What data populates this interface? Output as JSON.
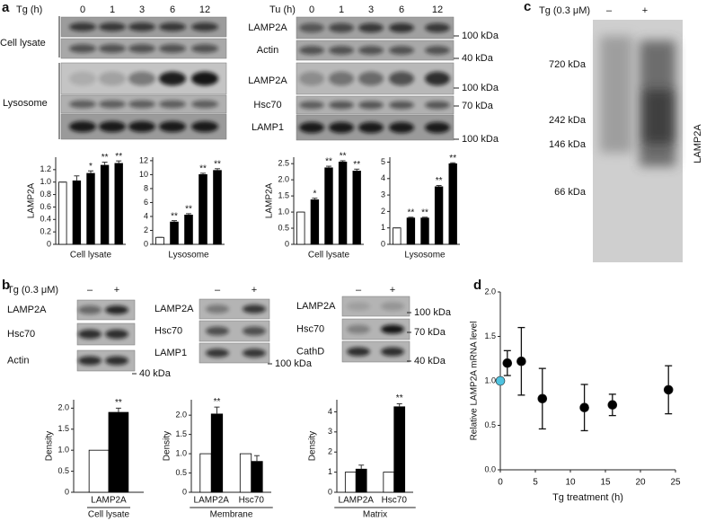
{
  "panels": {
    "a": {
      "label": "a",
      "left_blot": {
        "treatment": "Tg (h)",
        "times": [
          "0",
          "1",
          "3",
          "6",
          "12"
        ],
        "groups": [
          "Cell lysate",
          "Lysosome"
        ]
      },
      "right_blot": {
        "treatment": "Tu (h)",
        "times": [
          "0",
          "1",
          "3",
          "6",
          "12"
        ],
        "bands": [
          "LAMP2A",
          "Actin",
          "LAMP2A",
          "Hsc70",
          "LAMP1"
        ],
        "markers": [
          "100 kDa",
          "40 kDa",
          "100 kDa",
          "70 kDa",
          "100 kDa"
        ]
      }
    },
    "b": {
      "label": "b",
      "treatment": "Tg (0.3 μM)",
      "blots": [
        {
          "conditions": [
            "–",
            "+"
          ],
          "bands": [
            "LAMP2A",
            "Hsc70",
            "Actin"
          ],
          "markers": [
            "40 kDa"
          ]
        },
        {
          "conditions": [
            "–",
            "+"
          ],
          "bands": [
            "LAMP2A",
            "Hsc70",
            "LAMP1"
          ],
          "markers": [
            "100 kDa"
          ]
        },
        {
          "conditions": [
            "–",
            "+"
          ],
          "bands": [
            "LAMP2A",
            "Hsc70",
            "CathD"
          ],
          "markers": [
            "100 kDa",
            "70 kDa",
            "40 kDa"
          ]
        }
      ]
    },
    "c": {
      "label": "c",
      "treatment": "Tg (0.3 μM)",
      "conditions": [
        "–",
        "+"
      ],
      "markers": [
        "720 kDa",
        "242 kDa",
        "146 kDa",
        "66 kDa"
      ],
      "band": "LAMP2A"
    },
    "d": {
      "label": "d"
    }
  },
  "chart_data": [
    {
      "type": "bar",
      "y_label": "LAMP2A",
      "x_label": "Cell lysate",
      "values": [
        1.0,
        1.02,
        1.14,
        1.27,
        1.3
      ],
      "errors": [
        0,
        0.08,
        0.04,
        0.05,
        0.04
      ],
      "annotations": [
        null,
        null,
        "*",
        "**",
        "**"
      ],
      "colors": [
        "#ffffff",
        "#000000",
        "#000000",
        "#000000",
        "#000000"
      ],
      "ylim": [
        0,
        1.4
      ],
      "yticks": [
        0,
        0.2,
        0.4,
        0.6,
        0.8,
        {
          "value": 1,
          "label": "1.0"
        },
        1.2
      ]
    },
    {
      "type": "bar",
      "y_label": null,
      "x_label": "Lysosome",
      "values": [
        1.0,
        3.2,
        4.2,
        10.0,
        10.6
      ],
      "errors": [
        0,
        0.2,
        0.2,
        0.2,
        0.25
      ],
      "annotations": [
        null,
        "**",
        "**",
        "**",
        "**"
      ],
      "colors": [
        "#ffffff",
        "#000000",
        "#000000",
        "#000000",
        "#000000"
      ],
      "ylim": [
        0,
        12.5
      ],
      "yticks": [
        0,
        2,
        4,
        6,
        8,
        10,
        12
      ]
    },
    {
      "type": "bar",
      "y_label": "LAMP2A",
      "x_label": "Cell lysate",
      "values": [
        1.0,
        1.38,
        2.37,
        2.55,
        2.27
      ],
      "errors": [
        0,
        0.05,
        0.05,
        0.04,
        0.06
      ],
      "annotations": [
        null,
        "*",
        "**",
        "**",
        "**"
      ],
      "colors": [
        "#ffffff",
        "#000000",
        "#000000",
        "#000000",
        "#000000"
      ],
      "ylim": [
        0,
        2.7
      ],
      "yticks": [
        0,
        0.5,
        {
          "value": 1,
          "label": "1.0"
        },
        1.5,
        {
          "value": 2,
          "label": "2.0"
        },
        2.5
      ]
    },
    {
      "type": "bar",
      "y_label": null,
      "x_label": "Lysosome",
      "values": [
        1.0,
        1.6,
        1.6,
        3.5,
        4.9
      ],
      "errors": [
        0,
        0.05,
        0.05,
        0.08,
        0.06
      ],
      "annotations": [
        null,
        "**",
        "**",
        "**",
        "**"
      ],
      "colors": [
        "#ffffff",
        "#000000",
        "#000000",
        "#000000",
        "#000000"
      ],
      "ylim": [
        0,
        5.3
      ],
      "yticks": [
        0,
        1,
        2,
        3,
        4,
        5
      ]
    },
    {
      "type": "grouped_bar",
      "y_label": "Density",
      "group_label": "Cell lysate",
      "categories": [
        "LAMP2A"
      ],
      "series": [
        {
          "color": "#ffffff",
          "values": [
            1.0
          ]
        },
        {
          "color": "#000000",
          "values": [
            1.9
          ],
          "errors": [
            0.1
          ],
          "annotations": [
            "**"
          ]
        }
      ],
      "ylim": [
        0,
        2.2
      ],
      "yticks": [
        0,
        0.5,
        {
          "value": 1,
          "label": "1.0"
        },
        1.5,
        {
          "value": 2,
          "label": "2.0"
        }
      ]
    },
    {
      "type": "grouped_bar",
      "y_label": "Density",
      "group_label": "Membrane",
      "categories": [
        "LAMP2A",
        "Hsc70"
      ],
      "series": [
        {
          "color": "#ffffff",
          "values": [
            1.0,
            1.0
          ]
        },
        {
          "color": "#000000",
          "values": [
            2.03,
            0.8
          ],
          "errors": [
            0.18,
            0.15
          ],
          "annotations": [
            "**",
            null
          ]
        }
      ],
      "ylim": [
        0,
        2.4
      ],
      "yticks": [
        0,
        0.5,
        {
          "value": 1,
          "label": "1.0"
        },
        1.5,
        {
          "value": 2,
          "label": "2.0"
        }
      ]
    },
    {
      "type": "grouped_bar",
      "y_label": "Density",
      "group_label": "Matrix",
      "categories": [
        "LAMP2A",
        "Hsc70"
      ],
      "series": [
        {
          "color": "#ffffff",
          "values": [
            1.0,
            1.0
          ]
        },
        {
          "color": "#000000",
          "values": [
            1.15,
            4.25
          ],
          "errors": [
            0.2,
            0.15
          ],
          "annotations": [
            null,
            "**"
          ]
        }
      ],
      "ylim": [
        0,
        4.6
      ],
      "yticks": [
        0,
        1,
        2,
        3,
        4
      ]
    },
    {
      "type": "scatter",
      "x_label": "Tg treatment (h)",
      "y_label": "Relative LAMP2A mRNA level",
      "x": [
        0,
        1,
        3,
        6,
        12,
        16,
        24
      ],
      "values": [
        1.0,
        1.2,
        1.22,
        0.8,
        0.7,
        0.73,
        0.9
      ],
      "errors": [
        0,
        0.14,
        0.38,
        0.34,
        0.26,
        0.12,
        0.27
      ],
      "colors": [
        "#4fc3e0",
        "#000000",
        "#000000",
        "#000000",
        "#000000",
        "#000000",
        "#000000"
      ],
      "xlim": [
        0,
        25
      ],
      "ylim": [
        0,
        2
      ],
      "xticks": [
        0,
        5,
        10,
        15,
        20,
        25
      ],
      "yticks": [
        {
          "value": 0,
          "label": "0.0"
        },
        0.5,
        {
          "value": 1,
          "label": "1.0"
        },
        1.5,
        {
          "value": 2,
          "label": "2.0"
        }
      ]
    }
  ]
}
